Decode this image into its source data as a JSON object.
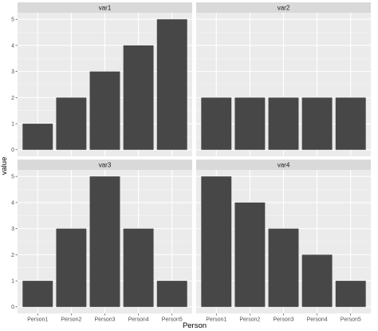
{
  "chart_data": {
    "type": "bar",
    "facet": "wrap",
    "xlabel": "Person",
    "ylabel": "value",
    "categories": [
      "Person1",
      "Person2",
      "Person3",
      "Person4",
      "Person5"
    ],
    "ylim": [
      0,
      5
    ],
    "yticks": [
      0,
      1,
      2,
      3,
      4,
      5
    ],
    "grid": true,
    "panels": [
      {
        "title": "var1",
        "values": [
          1,
          2,
          3,
          4,
          5
        ]
      },
      {
        "title": "var2",
        "values": [
          2,
          2,
          2,
          2,
          2
        ]
      },
      {
        "title": "var3",
        "values": [
          1,
          3,
          5,
          3,
          1
        ]
      },
      {
        "title": "var4",
        "values": [
          5,
          4,
          3,
          2,
          1
        ]
      }
    ],
    "colors": {
      "bar": "#474747",
      "panel_background": "#ebebeb",
      "strip_background": "#d9d9d9",
      "grid_major": "#ffffff",
      "tick_text": "#4d4d4d"
    }
  }
}
